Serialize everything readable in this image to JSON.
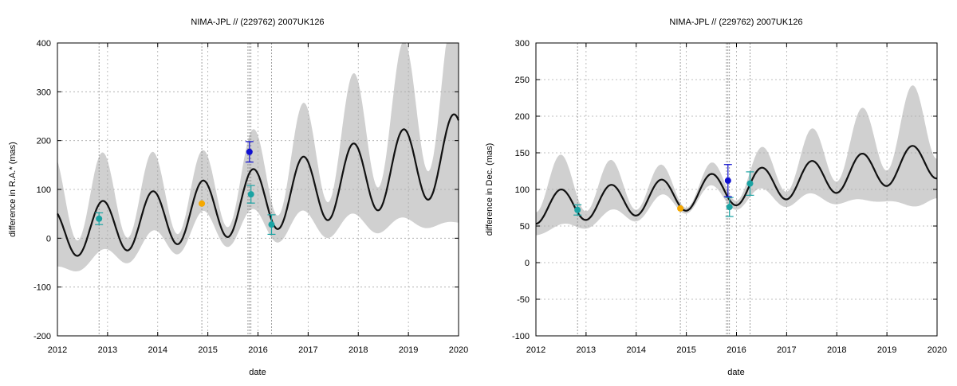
{
  "chart_data": [
    {
      "type": "line",
      "title": "NIMA-JPL // (229762) 2007UK126",
      "xlabel": "date",
      "ylabel": "difference in R.A.* (mas)",
      "xlim": [
        2012,
        2020
      ],
      "ylim": [
        -200,
        400
      ],
      "x_ticks": [
        "2012",
        "2013",
        "2014",
        "2015",
        "2016",
        "2017",
        "2018",
        "2019",
        "2020"
      ],
      "y_ticks": [
        "-200",
        "-100",
        "0",
        "100",
        "200",
        "300",
        "400"
      ],
      "grid": true,
      "vlines": [
        2012.83,
        2014.88,
        2015.8,
        2015.83,
        2015.86,
        2016.27
      ],
      "model": {
        "offset_start": 10,
        "offset_end": 175,
        "amp_start": 50,
        "amp_end": 82,
        "period": 1.0,
        "phase": 2012.65,
        "band_start": 75,
        "band_mid": 40,
        "band_end": 145,
        "band_min_at": 2014.9
      },
      "series": [
        {
          "color": "#1aa3a3",
          "points": [
            {
              "x": 2012.83,
              "y": 40,
              "err": 12
            },
            {
              "x": 2015.86,
              "y": 90,
              "err": 18
            },
            {
              "x": 2016.27,
              "y": 28,
              "err": 20
            }
          ]
        },
        {
          "color": "#f5a800",
          "points": [
            {
              "x": 2014.88,
              "y": 71,
              "err": 0
            }
          ]
        },
        {
          "color": "#1010d0",
          "points": [
            {
              "x": 2015.83,
              "y": 177,
              "err": 21
            }
          ]
        }
      ]
    },
    {
      "type": "line",
      "title": "NIMA-JPL // (229762) 2007UK126",
      "xlabel": "date",
      "ylabel": "difference in Dec. (mas)",
      "xlim": [
        2012,
        2020
      ],
      "ylim": [
        -100,
        300
      ],
      "x_ticks": [
        "2012",
        "2013",
        "2014",
        "2015",
        "2016",
        "2017",
        "2018",
        "2019",
        "2020"
      ],
      "y_ticks": [
        "-100",
        "-50",
        "0",
        "50",
        "100",
        "150",
        "200",
        "250",
        "300"
      ],
      "grid": true,
      "vlines": [
        2012.83,
        2014.88,
        2015.8,
        2015.83,
        2015.86,
        2016.27
      ],
      "model": {
        "offset_start": 75,
        "offset_end": 140,
        "amp_start": 22,
        "amp_end": 25,
        "period": 1.0,
        "phase": 2012.25,
        "band_start": 35,
        "band_mid": 8,
        "band_end": 60,
        "band_min_at": 2015.1
      },
      "series": [
        {
          "color": "#1aa3a3",
          "points": [
            {
              "x": 2012.83,
              "y": 72,
              "err": 7
            },
            {
              "x": 2015.86,
              "y": 76,
              "err": 13
            },
            {
              "x": 2016.27,
              "y": 108,
              "err": 16
            }
          ]
        },
        {
          "color": "#f5a800",
          "points": [
            {
              "x": 2014.88,
              "y": 74,
              "err": 0
            }
          ]
        },
        {
          "color": "#1010d0",
          "points": [
            {
              "x": 2015.83,
              "y": 112,
              "err": 22
            }
          ]
        }
      ]
    }
  ]
}
